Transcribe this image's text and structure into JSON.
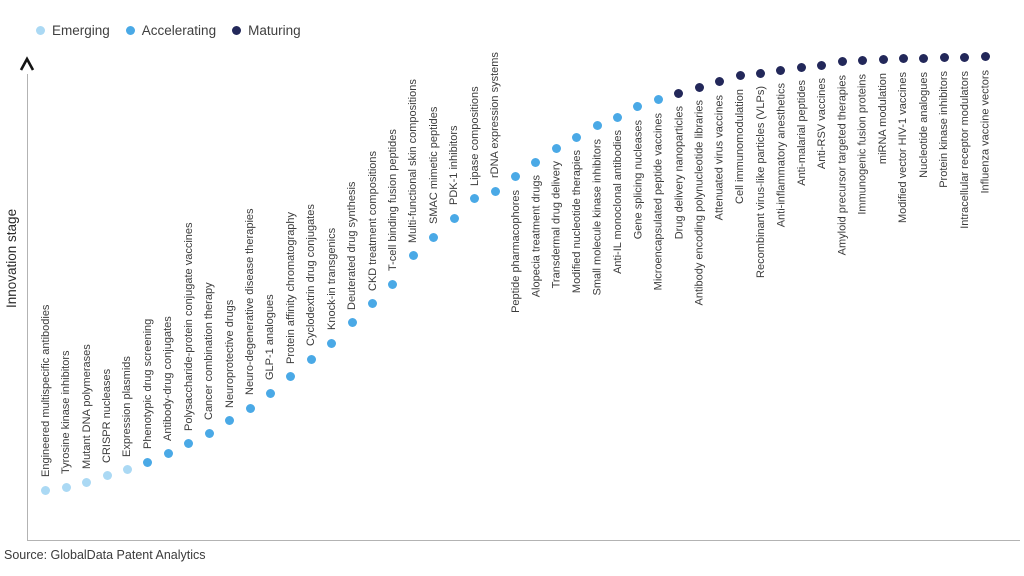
{
  "legend": {
    "items": [
      {
        "label": "Emerging",
        "key": "emerging"
      },
      {
        "label": "Accelerating",
        "key": "accelerating"
      },
      {
        "label": "Maturing",
        "key": "maturing"
      }
    ]
  },
  "colors": {
    "emerging": "#ABD9F4",
    "accelerating": "#4AA9E6",
    "maturing": "#23285A"
  },
  "y_axis": {
    "label": "Innovation stage"
  },
  "source": {
    "text": "Source: GlobalData Patent Analytics"
  },
  "chart_data": {
    "type": "scatter",
    "title": "",
    "xlabel": "",
    "ylabel": "Innovation stage",
    "ylim": [
      0,
      100
    ],
    "x_is_ordinal": true,
    "grid": false,
    "legend_position": "top-left",
    "legend_entries": [
      "Emerging",
      "Accelerating",
      "Maturing"
    ],
    "points": [
      {
        "label": "Engineered multispecific antibodies",
        "stage": "emerging",
        "value": 10.2
      },
      {
        "label": "Tyrosine kinase inhibitors",
        "stage": "emerging",
        "value": 10.8
      },
      {
        "label": "Mutant DNA polymerases",
        "stage": "emerging",
        "value": 11.8
      },
      {
        "label": "CRISPR nucleases",
        "stage": "emerging",
        "value": 13.1
      },
      {
        "label": "Expression plasmids",
        "stage": "emerging",
        "value": 14.3
      },
      {
        "label": "Phenotypic drug screening",
        "stage": "accelerating",
        "value": 15.9
      },
      {
        "label": "Antibody-drug conjugates",
        "stage": "accelerating",
        "value": 17.6
      },
      {
        "label": "Polysaccharide-protein conjugate vaccines",
        "stage": "accelerating",
        "value": 19.6
      },
      {
        "label": "Cancer combination therapy",
        "stage": "accelerating",
        "value": 21.8
      },
      {
        "label": "Neuroprotective drugs",
        "stage": "accelerating",
        "value": 24.3
      },
      {
        "label": "Neuro-degenerative disease therapies",
        "stage": "accelerating",
        "value": 26.9
      },
      {
        "label": "GLP-1 analogues",
        "stage": "accelerating",
        "value": 30.0
      },
      {
        "label": "Protein affinity chromatography",
        "stage": "accelerating",
        "value": 33.3
      },
      {
        "label": "Cyclodextrin drug conjugates",
        "stage": "accelerating",
        "value": 36.9
      },
      {
        "label": "Knock-in transgenics",
        "stage": "accelerating",
        "value": 40.2
      },
      {
        "label": "Deuterated drug synthesis",
        "stage": "accelerating",
        "value": 44.3
      },
      {
        "label": "CKD treatment compositions",
        "stage": "accelerating",
        "value": 48.2
      },
      {
        "label": "T-cell binding fusion peptides",
        "stage": "accelerating",
        "value": 52.2
      },
      {
        "label": "Multi-functional skin compositions",
        "stage": "accelerating",
        "value": 58.0
      },
      {
        "label": "SMAC mimetic peptides",
        "stage": "accelerating",
        "value": 61.8
      },
      {
        "label": "PDK-1 inhibitors",
        "stage": "accelerating",
        "value": 65.7
      },
      {
        "label": "Lipase compositions",
        "stage": "accelerating",
        "value": 69.6
      },
      {
        "label": "rDNA expression systems",
        "stage": "accelerating",
        "value": 71.2
      },
      {
        "label": "Peptide pharmacophores",
        "stage": "accelerating",
        "value": 74.1
      },
      {
        "label": "Alopecia treatment drugs",
        "stage": "accelerating",
        "value": 77.1
      },
      {
        "label": "Transdermal drug delivery",
        "stage": "accelerating",
        "value": 80.0
      },
      {
        "label": "Modified nucleotide therapies",
        "stage": "accelerating",
        "value": 82.2
      },
      {
        "label": "Small molecule kinase inhibitors",
        "stage": "accelerating",
        "value": 84.5
      },
      {
        "label": "Anti-IL monoclonal antibodies",
        "stage": "accelerating",
        "value": 86.3
      },
      {
        "label": "Gene splicing nucleases",
        "stage": "accelerating",
        "value": 88.4
      },
      {
        "label": "Microencapsulated peptide vaccines",
        "stage": "accelerating",
        "value": 89.8
      },
      {
        "label": "Drug delivery nanoparticles",
        "stage": "maturing",
        "value": 91.2
      },
      {
        "label": "Antibody encoding polynucleotide libraries",
        "stage": "maturing",
        "value": 92.4
      },
      {
        "label": "Attenuated virus vaccines",
        "stage": "maturing",
        "value": 93.5
      },
      {
        "label": "Cell immunomodulation",
        "stage": "maturing",
        "value": 94.7
      },
      {
        "label": "Recombinant virus-like particles (VLPs)",
        "stage": "maturing",
        "value": 95.3
      },
      {
        "label": "Anti-inflammatory anesthetics",
        "stage": "maturing",
        "value": 95.9
      },
      {
        "label": "Anti-malarial peptides",
        "stage": "maturing",
        "value": 96.5
      },
      {
        "label": "Anti-RSV vaccines",
        "stage": "maturing",
        "value": 96.9
      },
      {
        "label": "Amyloid precursor targeted therapies",
        "stage": "maturing",
        "value": 97.6
      },
      {
        "label": "Immunogenic fusion proteins",
        "stage": "maturing",
        "value": 97.8
      },
      {
        "label": "miRNA modulation",
        "stage": "maturing",
        "value": 98.0
      },
      {
        "label": "Modified vector HIV-1 vaccines",
        "stage": "maturing",
        "value": 98.2
      },
      {
        "label": "Nucleotide analogues",
        "stage": "maturing",
        "value": 98.2
      },
      {
        "label": "Protein kinase inhibitors",
        "stage": "maturing",
        "value": 98.4
      },
      {
        "label": "Intracellular receptor modulators",
        "stage": "maturing",
        "value": 98.4
      },
      {
        "label": "Influenza vaccine vectors",
        "stage": "maturing",
        "value": 98.6
      }
    ]
  }
}
